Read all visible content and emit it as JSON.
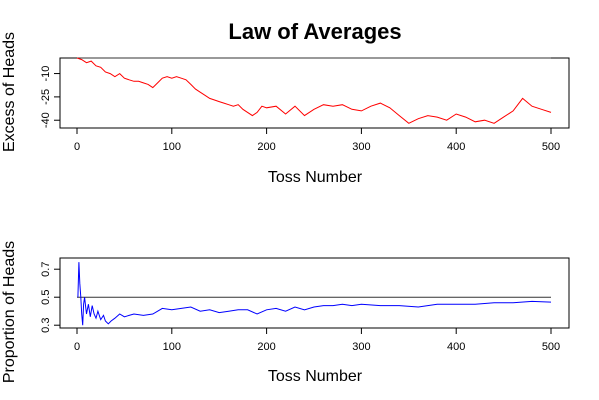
{
  "title": "Law of Averages",
  "chart_data": [
    {
      "type": "line",
      "xlabel": "Toss Number",
      "ylabel": "Excess of Heads",
      "xlim": [
        0,
        500
      ],
      "ylim": [
        -45,
        0
      ],
      "x_ticks": [
        0,
        100,
        200,
        300,
        400,
        500
      ],
      "y_ticks": [
        -10,
        -25,
        -40
      ],
      "reference_line": 0,
      "colors": {
        "series": "#ff0000",
        "reference": "#333333"
      },
      "series": [
        {
          "x": [
            0,
            5,
            10,
            15,
            20,
            25,
            30,
            35,
            40,
            45,
            50,
            55,
            60,
            65,
            70,
            75,
            80,
            85,
            90,
            95,
            100,
            105,
            110,
            115,
            120,
            125,
            130,
            135,
            140,
            145,
            150,
            155,
            160,
            165,
            170,
            175,
            180,
            185,
            190,
            195,
            200,
            210,
            220,
            230,
            240,
            250,
            260,
            270,
            280,
            290,
            300,
            310,
            320,
            330,
            340,
            350,
            360,
            370,
            380,
            390,
            400,
            410,
            420,
            430,
            440,
            450,
            460,
            470,
            480,
            490,
            500
          ],
          "y": [
            0,
            -1,
            -3,
            -2,
            -5,
            -6,
            -9,
            -10,
            -12,
            -10,
            -13,
            -14,
            -15,
            -15,
            -16,
            -17,
            -19,
            -16,
            -13,
            -12,
            -13,
            -12,
            -13,
            -14,
            -17,
            -20,
            -22,
            -24,
            -26,
            -27,
            -28,
            -29,
            -30,
            -31,
            -30,
            -33,
            -35,
            -37,
            -35,
            -31,
            -32,
            -31,
            -36,
            -31,
            -37,
            -33,
            -30,
            -31,
            -30,
            -33,
            -34,
            -31,
            -29,
            -32,
            -37,
            -42,
            -39,
            -37,
            -38,
            -40,
            -36,
            -38,
            -41,
            -40,
            -42,
            -38,
            -34,
            -26,
            -31,
            -33,
            -35
          ]
        }
      ]
    },
    {
      "type": "line",
      "xlabel": "Toss Number",
      "ylabel": "Proportion of Heads",
      "xlim": [
        0,
        500
      ],
      "ylim": [
        0.28,
        0.78
      ],
      "x_ticks": [
        0,
        100,
        200,
        300,
        400,
        500
      ],
      "y_ticks": [
        0.3,
        0.5,
        0.7
      ],
      "reference_line": 0.5,
      "colors": {
        "series": "#0000ff",
        "reference": "#333333"
      },
      "series": [
        {
          "x": [
            1,
            2,
            3,
            4,
            5,
            6,
            7,
            8,
            9,
            10,
            12,
            14,
            16,
            18,
            20,
            22,
            25,
            28,
            30,
            33,
            36,
            40,
            45,
            50,
            55,
            60,
            70,
            80,
            90,
            100,
            110,
            120,
            130,
            140,
            150,
            160,
            170,
            180,
            190,
            200,
            210,
            220,
            230,
            240,
            250,
            260,
            270,
            280,
            290,
            300,
            320,
            340,
            360,
            380,
            400,
            420,
            440,
            460,
            480,
            500
          ],
          "y": [
            0.5,
            0.75,
            0.6,
            0.5,
            0.38,
            0.3,
            0.45,
            0.5,
            0.44,
            0.38,
            0.45,
            0.36,
            0.44,
            0.38,
            0.35,
            0.4,
            0.34,
            0.37,
            0.33,
            0.31,
            0.33,
            0.35,
            0.38,
            0.36,
            0.37,
            0.38,
            0.37,
            0.38,
            0.42,
            0.41,
            0.42,
            0.43,
            0.4,
            0.41,
            0.39,
            0.4,
            0.41,
            0.41,
            0.38,
            0.41,
            0.42,
            0.4,
            0.43,
            0.41,
            0.43,
            0.44,
            0.44,
            0.45,
            0.44,
            0.45,
            0.44,
            0.44,
            0.43,
            0.45,
            0.45,
            0.45,
            0.46,
            0.46,
            0.47,
            0.465
          ]
        }
      ]
    }
  ]
}
